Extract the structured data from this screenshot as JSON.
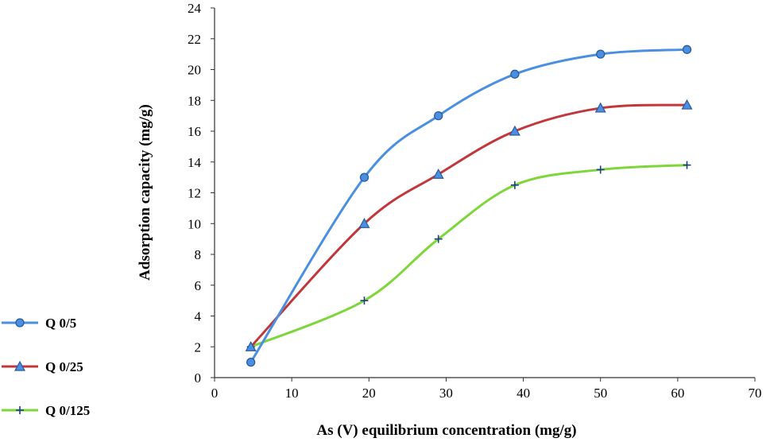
{
  "chart_data": {
    "type": "line",
    "title": "",
    "xlabel": "As (V) equilibrium concentration (mg/g)",
    "ylabel": "Adsorption capacity (mg/g)",
    "xlim": [
      0,
      70
    ],
    "ylim": [
      0,
      24
    ],
    "x_ticks": [
      0,
      10,
      20,
      30,
      40,
      50,
      60,
      70
    ],
    "y_ticks": [
      0,
      2,
      4,
      6,
      8,
      10,
      12,
      14,
      16,
      18,
      20,
      22,
      24
    ],
    "grid": false,
    "smooth": true,
    "legend_position": "left",
    "series": [
      {
        "name": "Q 0/5",
        "color": "#4a8fe0",
        "marker": "circle",
        "x": [
          4.7,
          19.4,
          29,
          38.9,
          50,
          61.2
        ],
        "y": [
          1,
          13,
          17,
          19.7,
          21,
          21.3
        ]
      },
      {
        "name": "Q 0/25",
        "color": "#c0383b",
        "marker": "triangle",
        "x": [
          4.7,
          19.4,
          29,
          38.9,
          50,
          61.2
        ],
        "y": [
          2,
          10,
          13.2,
          16,
          17.5,
          17.7
        ]
      },
      {
        "name": "Q 0/125",
        "color": "#7fd63a",
        "marker": "plus",
        "x": [
          4.7,
          19.4,
          29,
          38.9,
          50,
          61.2
        ],
        "y": [
          2,
          5,
          9,
          12.5,
          13.5,
          13.8
        ]
      }
    ]
  }
}
